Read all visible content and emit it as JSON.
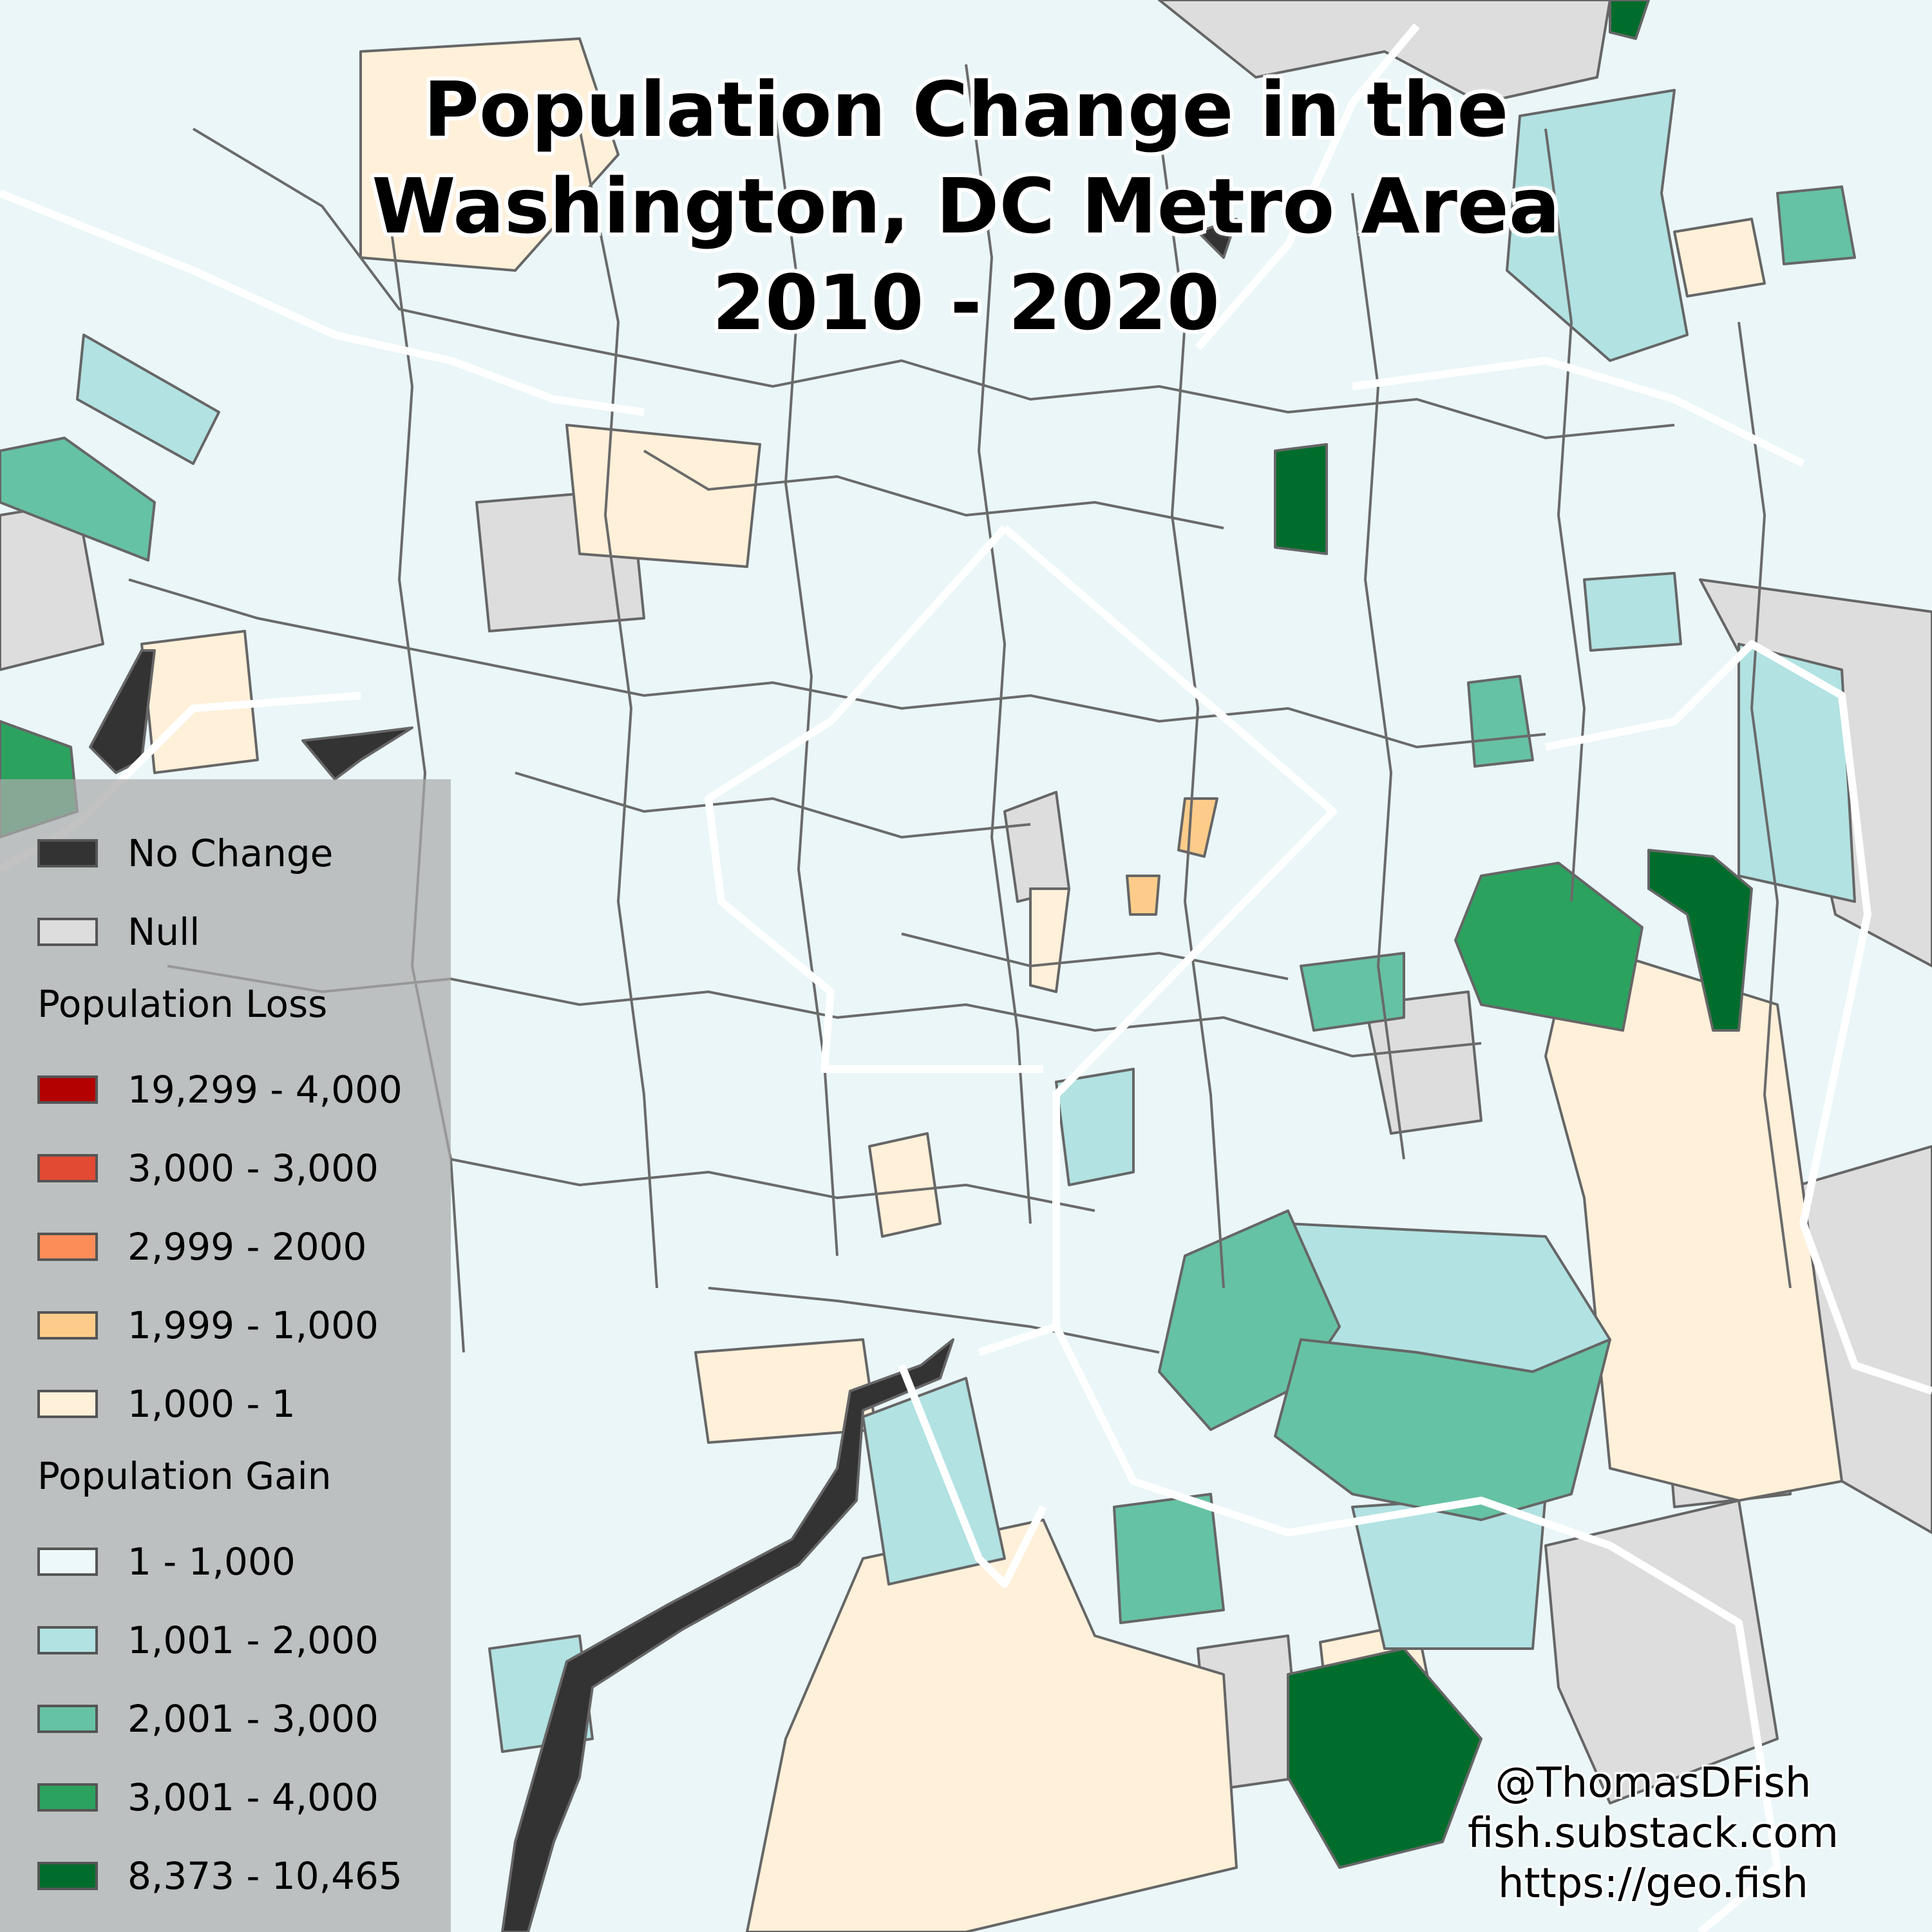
{
  "title": {
    "line1": "Population Change in the",
    "line2": "Washington, DC Metro Area",
    "line3": "2010 - 2020"
  },
  "legend": {
    "no_change": "No Change",
    "null": "Null",
    "loss_header": "Population Loss",
    "loss": [
      {
        "label": "19,299 - 4,000",
        "color": "#b30000"
      },
      {
        "label": "3,000 - 3,000",
        "color": "#e34a33"
      },
      {
        "label": "2,999 - 2000",
        "color": "#fc8d59"
      },
      {
        "label": "1,999 - 1,000",
        "color": "#fdcc8a"
      },
      {
        "label": "1,000 - 1",
        "color": "#fef0d9"
      }
    ],
    "gain_header": "Population Gain",
    "gain": [
      {
        "label": "1 - 1,000",
        "color": "#edf8fb"
      },
      {
        "label": "1,001 - 2,000",
        "color": "#b2e2e2"
      },
      {
        "label": "2,001 - 3,000",
        "color": "#66c2a4"
      },
      {
        "label": "3,001 - 4,000",
        "color": "#2ca25f"
      },
      {
        "label": "8,373 - 10,465",
        "color": "#006d2c"
      }
    ],
    "no_change_color": "#333333",
    "null_color": "#dddddd"
  },
  "credits": {
    "handle": "@ThomasDFish",
    "substack": "fish.substack.com",
    "site": "https://geo.fish"
  }
}
